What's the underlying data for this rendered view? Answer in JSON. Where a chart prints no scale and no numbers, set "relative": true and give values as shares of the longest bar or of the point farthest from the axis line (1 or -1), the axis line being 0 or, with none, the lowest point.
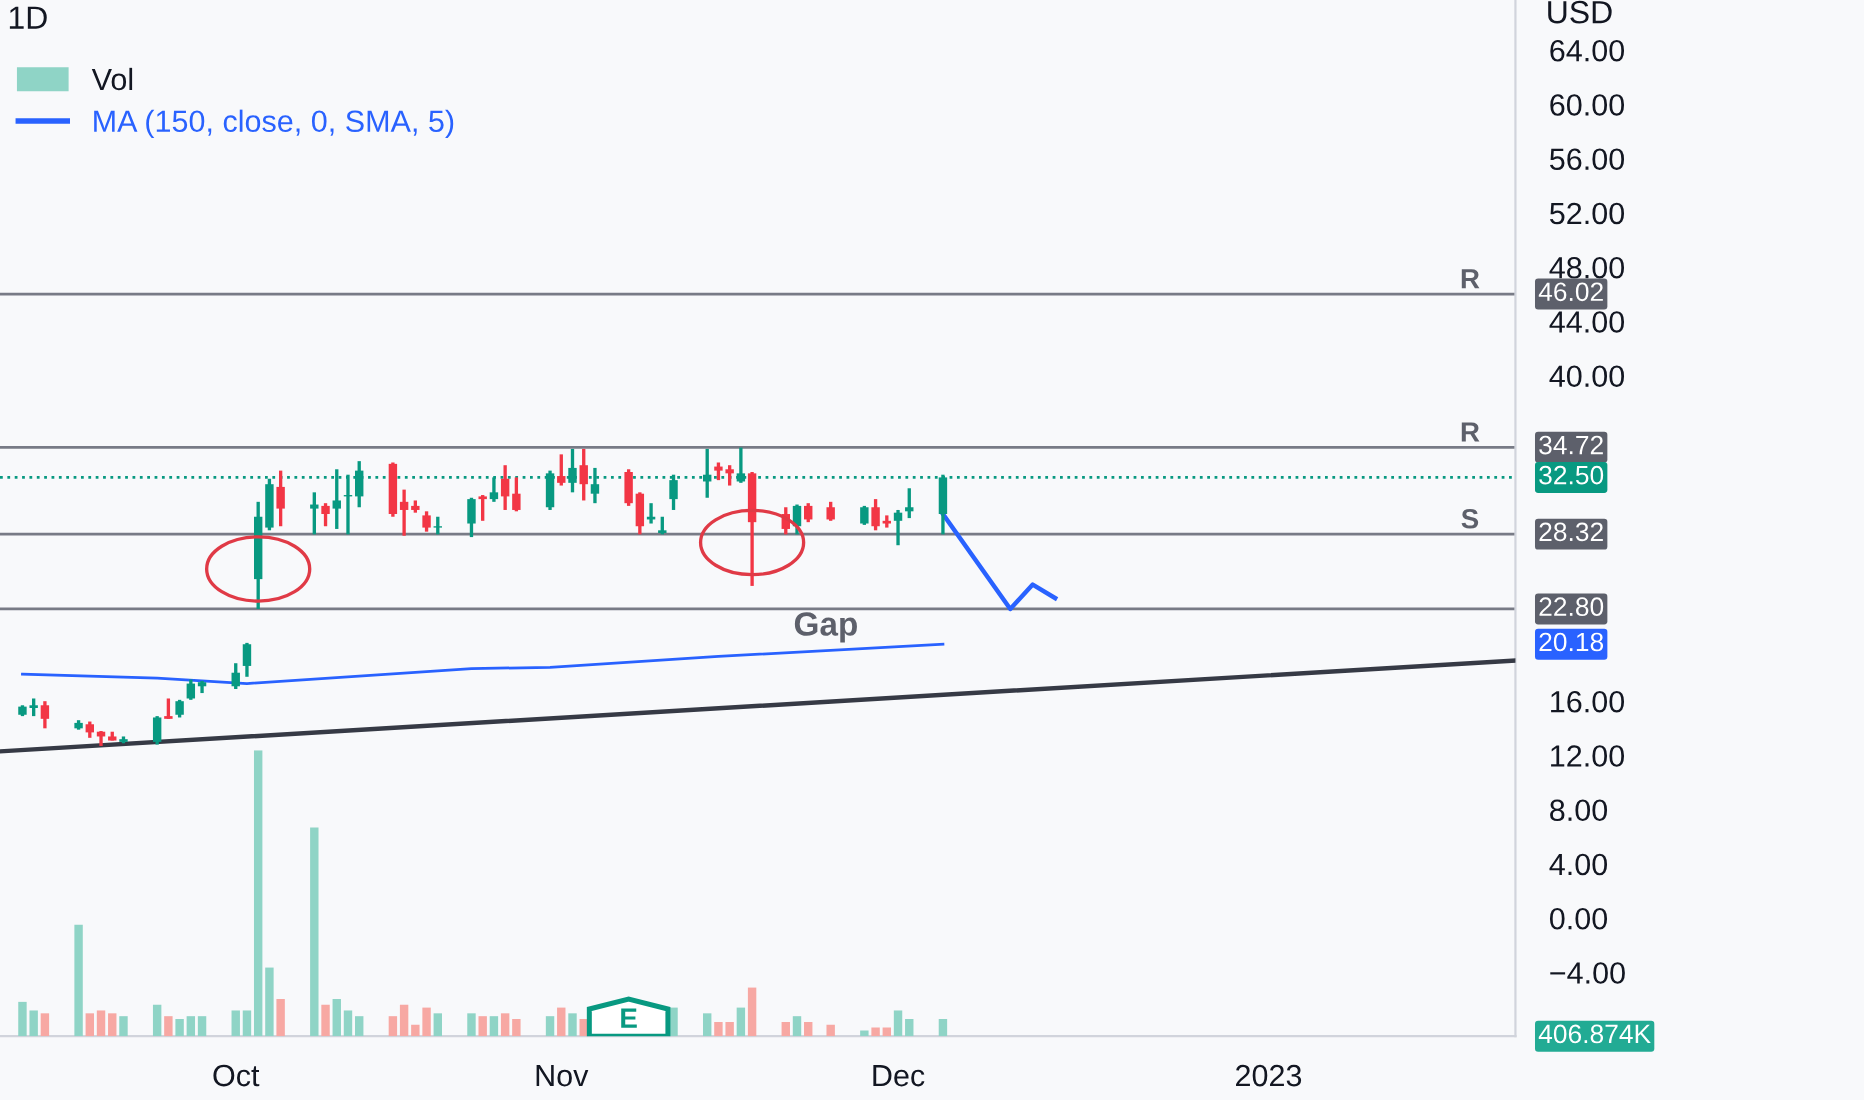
{
  "chart_data": [
    {
      "type": "candlestick",
      "title": "1D",
      "ylabel": "USD",
      "x": [
        "2022-09-14",
        "2022-09-15",
        "2022-09-16",
        "2022-09-19",
        "2022-09-20",
        "2022-09-21",
        "2022-09-22",
        "2022-09-23",
        "2022-09-26",
        "2022-09-27",
        "2022-09-28",
        "2022-09-29",
        "2022-09-30",
        "2022-10-03",
        "2022-10-04",
        "2022-10-05",
        "2022-10-06",
        "2022-10-07",
        "2022-10-10",
        "2022-10-11",
        "2022-10-12",
        "2022-10-13",
        "2022-10-14",
        "2022-10-17",
        "2022-10-18",
        "2022-10-19",
        "2022-10-20",
        "2022-10-21",
        "2022-10-24",
        "2022-10-25",
        "2022-10-26",
        "2022-10-27",
        "2022-10-28",
        "2022-10-31",
        "2022-11-01",
        "2022-11-02",
        "2022-11-03",
        "2022-11-04",
        "2022-11-07",
        "2022-11-08",
        "2022-11-09",
        "2022-11-10",
        "2022-11-11",
        "2022-11-14",
        "2022-11-15",
        "2022-11-16",
        "2022-11-17",
        "2022-11-18",
        "2022-11-21",
        "2022-11-22",
        "2022-11-23",
        "2022-11-25",
        "2022-11-28",
        "2022-11-29",
        "2022-11-30",
        "2022-12-01",
        "2022-12-02",
        "2022-12-05"
      ],
      "ohlc": [
        [
          15.0,
          15.7,
          14.9,
          15.6
        ],
        [
          15.5,
          16.2,
          14.9,
          15.7
        ],
        [
          15.7,
          16.0,
          14.0,
          14.7
        ],
        [
          14.0,
          14.6,
          13.9,
          14.4
        ],
        [
          14.3,
          14.5,
          13.3,
          13.7
        ],
        [
          13.75,
          13.8,
          12.7,
          13.4
        ],
        [
          13.4,
          13.75,
          13.1,
          13.1
        ],
        [
          13.0,
          13.4,
          12.9,
          13.2
        ],
        [
          13.0,
          14.9,
          12.8,
          14.8
        ],
        [
          14.9,
          16.2,
          14.7,
          14.7
        ],
        [
          15.0,
          16.1,
          14.8,
          16.0
        ],
        [
          16.2,
          17.6,
          16.1,
          17.3
        ],
        [
          17.1,
          17.5,
          16.6,
          17.4
        ],
        [
          17.1,
          18.8,
          16.9,
          18.1
        ],
        [
          18.6,
          20.3,
          17.8,
          20.2
        ],
        [
          25.0,
          30.7,
          22.8,
          29.6
        ],
        [
          28.8,
          32.4,
          28.6,
          32.0
        ],
        [
          31.8,
          33.0,
          28.9,
          30.2
        ],
        [
          30.2,
          31.4,
          28.3,
          30.5
        ],
        [
          30.4,
          30.6,
          28.9,
          29.8
        ],
        [
          30.2,
          33.1,
          28.7,
          30.8
        ],
        [
          31.1,
          32.7,
          28.3,
          31.2
        ],
        [
          31.1,
          33.7,
          30.3,
          33.0
        ],
        [
          33.5,
          33.6,
          29.6,
          29.8
        ],
        [
          30.7,
          31.6,
          28.2,
          30.1
        ],
        [
          30.4,
          30.8,
          29.9,
          30.1
        ],
        [
          29.7,
          30.0,
          28.5,
          28.8
        ],
        [
          28.8,
          29.6,
          28.3,
          28.9
        ],
        [
          29.1,
          31.0,
          28.1,
          30.9
        ],
        [
          31.1,
          31.2,
          29.3,
          30.9
        ],
        [
          30.9,
          32.5,
          30.7,
          31.4
        ],
        [
          32.4,
          33.4,
          30.1,
          31.1
        ],
        [
          31.3,
          32.5,
          30.0,
          30.1
        ],
        [
          30.3,
          33.0,
          30.1,
          32.8
        ],
        [
          32.6,
          34.2,
          31.9,
          32.1
        ],
        [
          32.1,
          34.6,
          31.4,
          33.2
        ],
        [
          33.4,
          34.6,
          30.8,
          32.0
        ],
        [
          31.3,
          33.2,
          30.6,
          32.0
        ],
        [
          32.9,
          33.1,
          30.4,
          30.6
        ],
        [
          31.3,
          31.4,
          28.3,
          28.9
        ],
        [
          29.4,
          30.6,
          29.1,
          29.6
        ],
        [
          28.4,
          29.6,
          28.3,
          28.6
        ],
        [
          30.9,
          32.7,
          30.1,
          32.3
        ],
        [
          32.2,
          34.6,
          31.0,
          32.7
        ],
        [
          33.3,
          33.6,
          32.3,
          33.0
        ],
        [
          33.1,
          33.4,
          31.9,
          32.8
        ],
        [
          32.2,
          34.7,
          32.1,
          32.8
        ],
        [
          32.8,
          32.9,
          24.5,
          29.2
        ],
        [
          29.8,
          30.3,
          28.3,
          28.7
        ],
        [
          28.9,
          30.5,
          28.3,
          30.4
        ],
        [
          30.4,
          30.6,
          29.2,
          29.4
        ],
        [
          30.3,
          30.7,
          29.3,
          29.4
        ],
        [
          29.1,
          30.4,
          29.0,
          30.3
        ],
        [
          30.3,
          30.9,
          28.6,
          28.9
        ],
        [
          29.3,
          29.7,
          28.8,
          29.1
        ],
        [
          29.3,
          30.1,
          27.5,
          29.9
        ],
        [
          30.0,
          31.7,
          29.5,
          30.3
        ],
        [
          29.8,
          32.7,
          28.3,
          32.5
        ]
      ],
      "series": [
        {
          "type": "line",
          "name": "MA (150, close, 0, SMA, 5)",
          "color": "#2962ff",
          "x": [
            "2022-09-14",
            "2022-09-26",
            "2022-10-04",
            "2022-10-24",
            "2022-10-31",
            "2022-11-15",
            "2022-12-05"
          ],
          "values": [
            18.0,
            17.7,
            17.3,
            18.4,
            18.5,
            19.3,
            20.2
          ]
        },
        {
          "type": "line",
          "color": "#363a45",
          "x": [
            "2022-09-12",
            "2023-01-25"
          ],
          "values": [
            12.3,
            19.0
          ]
        },
        {
          "type": "line",
          "color": "#2962ff",
          "x": [
            "2022-12-05",
            "2022-12-11",
            "2022-12-13",
            "2022-12-15"
          ],
          "values": [
            29.8,
            22.8,
            24.6,
            23.6
          ]
        }
      ],
      "ref_lines": [
        {
          "axis": "y",
          "value": 46.02,
          "label": "R",
          "color": "#787b86"
        },
        {
          "axis": "y",
          "value": 34.72,
          "label": "R",
          "color": "#787b86"
        },
        {
          "axis": "y",
          "value": 32.5,
          "color": "#089981",
          "line_style": "dotted"
        },
        {
          "axis": "y",
          "value": 28.32,
          "label": "S",
          "color": "#787b86"
        },
        {
          "axis": "y",
          "value": 22.8,
          "color": "#787b86"
        }
      ],
      "annotations": [
        "Gap",
        "46.02",
        "34.72",
        "32.50",
        "28.32",
        "22.80",
        "20.18"
      ],
      "xlim": [
        "2022-09-12",
        "2023-01-25"
      ],
      "xticks": [
        {
          "value": "2022-10-03",
          "label": "Oct"
        },
        {
          "value": "2022-11-01",
          "label": "Nov"
        },
        {
          "value": "2022-12-01",
          "label": "Dec"
        },
        {
          "value": "2023-01-03",
          "label": "2023"
        }
      ],
      "ylim": [
        -8.7,
        67.7
      ],
      "yticks": [
        {
          "value": -4,
          "label": "−4.00"
        },
        {
          "value": 0,
          "label": "0.00"
        },
        {
          "value": 4,
          "label": "4.00"
        },
        {
          "value": 8,
          "label": "8.00"
        },
        {
          "value": 12,
          "label": "12.00"
        },
        {
          "value": 16,
          "label": "16.00"
        },
        {
          "value": 40,
          "label": "40.00"
        },
        {
          "value": 44,
          "label": "44.00"
        },
        {
          "value": 48,
          "label": "48.00"
        },
        {
          "value": 52,
          "label": "52.00"
        },
        {
          "value": 56,
          "label": "56.00"
        },
        {
          "value": 60,
          "label": "60.00"
        },
        {
          "value": 64,
          "label": "64.00"
        }
      ],
      "legend": "top left"
    },
    {
      "type": "bar",
      "relative": true,
      "legend": "top left",
      "x": [
        "2022-09-14",
        "2022-09-15",
        "2022-09-16",
        "2022-09-19",
        "2022-09-20",
        "2022-09-21",
        "2022-09-22",
        "2022-09-23",
        "2022-09-26",
        "2022-09-27",
        "2022-09-28",
        "2022-09-29",
        "2022-09-30",
        "2022-10-03",
        "2022-10-04",
        "2022-10-05",
        "2022-10-06",
        "2022-10-07",
        "2022-10-10",
        "2022-10-11",
        "2022-10-12",
        "2022-10-13",
        "2022-10-14",
        "2022-10-17",
        "2022-10-18",
        "2022-10-19",
        "2022-10-20",
        "2022-10-21",
        "2022-10-24",
        "2022-10-25",
        "2022-10-26",
        "2022-10-27",
        "2022-10-28",
        "2022-10-31",
        "2022-11-01",
        "2022-11-02",
        "2022-11-03",
        "2022-11-04",
        "2022-11-07",
        "2022-11-08",
        "2022-11-09",
        "2022-11-10",
        "2022-11-11",
        "2022-11-14",
        "2022-11-15",
        "2022-11-16",
        "2022-11-17",
        "2022-11-18",
        "2022-11-21",
        "2022-11-22",
        "2022-11-23",
        "2022-11-25",
        "2022-11-28",
        "2022-11-29",
        "2022-11-30",
        "2022-12-01",
        "2022-12-02",
        "2022-12-05"
      ],
      "xlim": [
        "2022-09-12",
        "2023-01-25"
      ],
      "series": [
        {
          "name": "Vol",
          "values": [
            0.12,
            0.09,
            0.08,
            0.39,
            0.08,
            0.09,
            0.08,
            0.07,
            0.11,
            0.07,
            0.06,
            0.07,
            0.07,
            0.09,
            0.09,
            1,
            0.24,
            0.13,
            0.73,
            0.11,
            0.13,
            0.09,
            0.07,
            0.07,
            0.11,
            0.04,
            0.1,
            0.08,
            0.08,
            0.07,
            0.07,
            0.08,
            0.06,
            0.07,
            0.1,
            0.08,
            0.06,
            null,
            null,
            null,
            null,
            null,
            0.1,
            0.08,
            0.05,
            0.05,
            0.1,
            0.17,
            0.05,
            0.07,
            0.05,
            0.04,
            0.02,
            0.03,
            0.03,
            0.09,
            0.06,
            0.06
          ],
          "colors": [
            "#8fd4c6",
            "#8fd4c6",
            "#f7a8a3",
            "#8fd4c6",
            "#f7a8a3",
            "#f7a8a3",
            "#f7a8a3",
            "#8fd4c6",
            "#8fd4c6",
            "#f7a8a3",
            "#8fd4c6",
            "#8fd4c6",
            "#8fd4c6",
            "#8fd4c6",
            "#8fd4c6",
            "#8fd4c6",
            "#8fd4c6",
            "#f7a8a3",
            "#8fd4c6",
            "#f7a8a3",
            "#8fd4c6",
            "#8fd4c6",
            "#8fd4c6",
            "#f7a8a3",
            "#f7a8a3",
            "#f7a8a3",
            "#f7a8a3",
            "#8fd4c6",
            "#8fd4c6",
            "#f7a8a3",
            "#8fd4c6",
            "#f7a8a3",
            "#f7a8a3",
            "#8fd4c6",
            "#f7a8a3",
            "#8fd4c6",
            "#f7a8a3",
            "#8fd4c6",
            "#f7a8a3",
            "#f7a8a3",
            "#8fd4c6",
            "#8fd4c6",
            "#8fd4c6",
            "#8fd4c6",
            "#f7a8a3",
            "#f7a8a3",
            "#8fd4c6",
            "#f7a8a3",
            "#f7a8a3",
            "#8fd4c6",
            "#f7a8a3",
            "#f7a8a3",
            "#8fd4c6",
            "#f7a8a3",
            "#f7a8a3",
            "#8fd4c6",
            "#8fd4c6",
            "#8fd4c6"
          ]
        }
      ],
      "annotations": [
        "406.874K",
        "E"
      ]
    }
  ]
}
